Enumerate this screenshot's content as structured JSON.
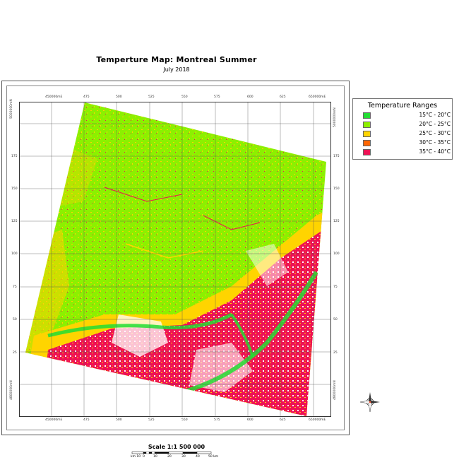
{
  "map": {
    "title": "Temperture Map: Montreal Summer",
    "subtitle": "July 2018"
  },
  "legend": {
    "title": "Temperature Ranges",
    "items": [
      {
        "label": "15°C - 20°C",
        "color": "#22dd33"
      },
      {
        "label": "20°C - 25°C",
        "color": "#8cf000"
      },
      {
        "label": "25°C - 30°C",
        "color": "#ffd400"
      },
      {
        "label": "30°C - 35°C",
        "color": "#ff6600"
      },
      {
        "label": "35°C - 40°C",
        "color": "#ee1155"
      }
    ]
  },
  "grid": {
    "top_labels": [
      "450000mE",
      "475",
      "500",
      "525",
      "550",
      "575",
      "600",
      "625",
      "650000mE"
    ],
    "bottom_labels": [
      "450000mE",
      "475",
      "500",
      "525",
      "550",
      "575",
      "600",
      "625",
      "650000mE"
    ],
    "left_labels": [
      "5000000mN",
      "175",
      "150",
      "125",
      "100",
      "75",
      "50",
      "25",
      "4800000mN"
    ],
    "right_labels": [
      "5000000mN",
      "175",
      "150",
      "125",
      "100",
      "75",
      "50",
      "25",
      "4800000mN"
    ]
  },
  "scale": {
    "title": "Scale 1:1 500 000",
    "labels": [
      "km 10",
      "0",
      "10",
      "20",
      "30",
      "40",
      "50 km"
    ]
  },
  "compass": {
    "icon": "north-arrow-icon"
  }
}
